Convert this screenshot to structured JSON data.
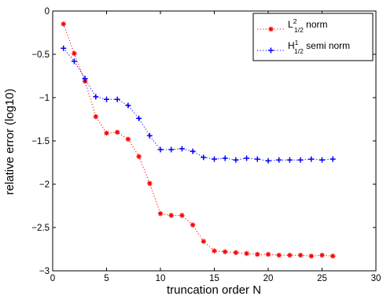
{
  "chart_data": {
    "type": "line",
    "title": "",
    "xlabel": "truncation order N",
    "ylabel": "relative error (log10)",
    "xlim": [
      0,
      30
    ],
    "ylim": [
      -3,
      0
    ],
    "xticks": [
      0,
      5,
      10,
      15,
      20,
      25,
      30
    ],
    "yticks": [
      -3,
      -2.5,
      -2,
      -1.5,
      -1,
      -0.5,
      0
    ],
    "xtick_labels": [
      "0",
      "5",
      "10",
      "15",
      "20",
      "25",
      "30"
    ],
    "ytick_labels": [
      "−3",
      "−2.5",
      "−2",
      "−1.5",
      "−1",
      "−0.5",
      "0"
    ],
    "grid": false,
    "legend_position": "top-right",
    "x": [
      1,
      2,
      3,
      4,
      5,
      6,
      7,
      8,
      9,
      10,
      11,
      12,
      13,
      14,
      15,
      16,
      17,
      18,
      19,
      20,
      21,
      22,
      23,
      24,
      25,
      26
    ],
    "series": [
      {
        "name_main": "L",
        "name_sup": "2",
        "name_sub": "1/2",
        "name_rest": " norm",
        "color": "#ff0000",
        "line_style": "dotted",
        "marker": "asterisk",
        "values": [
          -0.15,
          -0.49,
          -0.81,
          -1.22,
          -1.41,
          -1.4,
          -1.48,
          -1.68,
          -1.99,
          -2.34,
          -2.36,
          -2.36,
          -2.47,
          -2.66,
          -2.77,
          -2.78,
          -2.79,
          -2.8,
          -2.81,
          -2.81,
          -2.82,
          -2.82,
          -2.82,
          -2.83,
          -2.82,
          -2.83
        ]
      },
      {
        "name_main": "H",
        "name_sup": "1",
        "name_sub": "1/2",
        "name_rest": " semi norm",
        "color": "#0000ff",
        "line_style": "dotted",
        "marker": "plus",
        "values": [
          -0.43,
          -0.58,
          -0.78,
          -0.99,
          -1.02,
          -1.02,
          -1.09,
          -1.24,
          -1.44,
          -1.6,
          -1.6,
          -1.59,
          -1.62,
          -1.69,
          -1.71,
          -1.7,
          -1.72,
          -1.7,
          -1.71,
          -1.73,
          -1.72,
          -1.72,
          -1.72,
          -1.71,
          -1.72,
          -1.71
        ]
      }
    ]
  }
}
